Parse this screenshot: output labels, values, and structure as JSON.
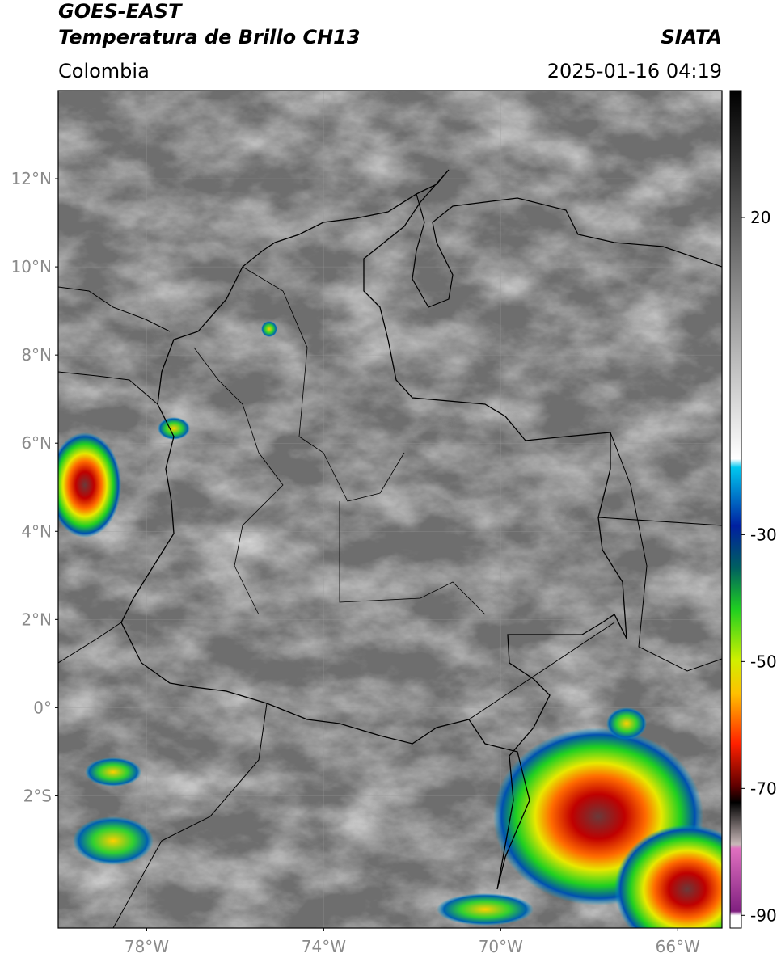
{
  "header": {
    "title": "GOES-EAST",
    "subtitle": "Temperatura de Brillo CH13",
    "source": "SIATA",
    "region": "Colombia",
    "datetime": "2025-01-16 04:19"
  },
  "map": {
    "lonlim": [
      -80,
      -65
    ],
    "latlim": [
      -5,
      14
    ],
    "lat_ticks": [
      {
        "value": 12,
        "label": "12°N"
      },
      {
        "value": 10,
        "label": "10°N"
      },
      {
        "value": 8,
        "label": "8°N"
      },
      {
        "value": 6,
        "label": "6°N"
      },
      {
        "value": 4,
        "label": "4°N"
      },
      {
        "value": 2,
        "label": "2°N"
      },
      {
        "value": 0,
        "label": "0°"
      },
      {
        "value": -2,
        "label": "2°S"
      }
    ],
    "lon_ticks": [
      {
        "value": -78,
        "label": "78°W"
      },
      {
        "value": -74,
        "label": "74°W"
      },
      {
        "value": -70,
        "label": "70°W"
      },
      {
        "value": -66,
        "label": "66°W"
      }
    ],
    "grid": true
  },
  "colorbar": {
    "lim": [
      -92,
      40
    ],
    "ticks": [
      20,
      -30,
      -50,
      -70,
      -90
    ]
  }
}
